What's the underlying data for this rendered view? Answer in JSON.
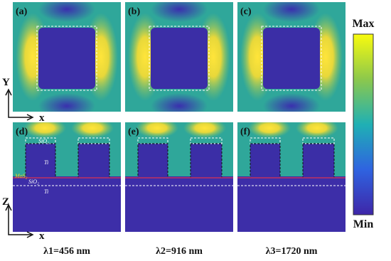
{
  "panels": [
    {
      "label": "(a)"
    },
    {
      "label": "(b)"
    },
    {
      "label": "(c)"
    },
    {
      "label": "(d)"
    },
    {
      "label": "(e)"
    },
    {
      "label": "(f)"
    }
  ],
  "axes": {
    "top": {
      "vertical": "Y",
      "horizontal": "x"
    },
    "bottom": {
      "vertical": "Z",
      "horizontal": "x"
    }
  },
  "materials": [
    "SiO₂",
    "Ti",
    "MoS₂",
    "SiO₂",
    "Ti"
  ],
  "colorbar": {
    "max": "Max",
    "min": "Min"
  },
  "wavelengths": [
    "λ1=456 nm",
    "λ2=916 nm",
    "λ3=1720 nm"
  ]
}
